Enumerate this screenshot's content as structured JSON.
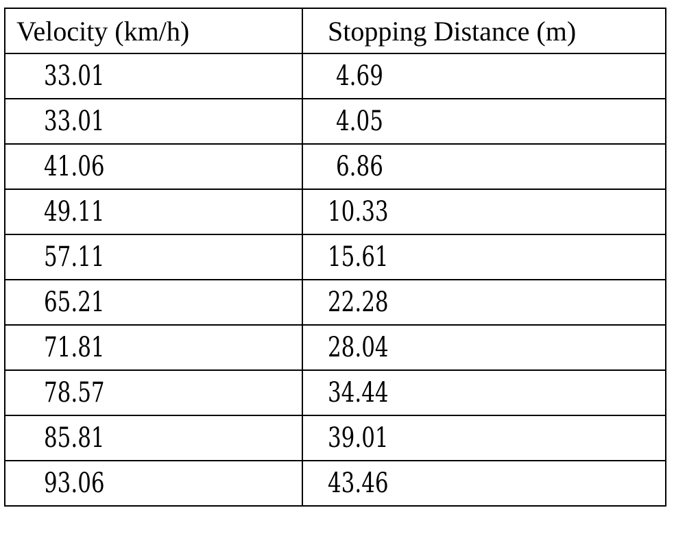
{
  "table": {
    "headers": {
      "velocity": "Velocity (km/h)",
      "distance": "Stopping Distance (m)"
    },
    "rows": [
      {
        "velocity": "33.01",
        "distance": "4.69"
      },
      {
        "velocity": "33.01",
        "distance": "4.05"
      },
      {
        "velocity": "41.06",
        "distance": "6.86"
      },
      {
        "velocity": "49.11",
        "distance": "10.33"
      },
      {
        "velocity": "57.11",
        "distance": "15.61"
      },
      {
        "velocity": "65.21",
        "distance": "22.28"
      },
      {
        "velocity": "71.81",
        "distance": "28.04"
      },
      {
        "velocity": "78.57",
        "distance": "34.44"
      },
      {
        "velocity": "85.81",
        "distance": "39.01"
      },
      {
        "velocity": "93.06",
        "distance": "43.46"
      }
    ]
  }
}
